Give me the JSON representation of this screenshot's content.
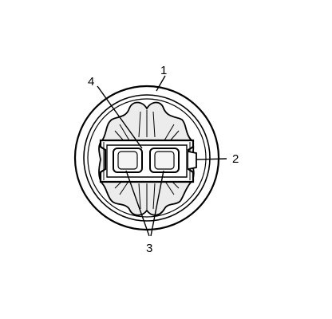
{
  "diagram": {
    "colors": {
      "stroke": "#000000",
      "shading": "#d9d9d9",
      "background": "#ffffff"
    },
    "callouts": [
      {
        "id": "outer-ring",
        "label": "1"
      },
      {
        "id": "locking-tab",
        "label": "2"
      },
      {
        "id": "terminals",
        "label": "3"
      },
      {
        "id": "connector-body",
        "label": "4"
      }
    ]
  }
}
